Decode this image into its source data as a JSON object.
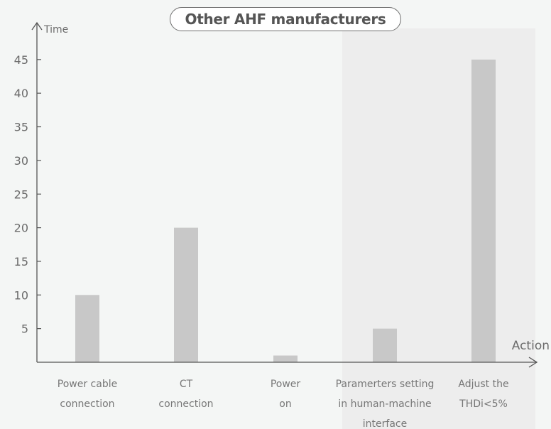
{
  "chart_data": {
    "type": "bar",
    "title": "Other AHF manufacturers",
    "xlabel": "Action",
    "ylabel": "Time",
    "categories": [
      [
        "Power cable",
        "connection"
      ],
      [
        "CT",
        "connection"
      ],
      [
        "Power",
        "on"
      ],
      [
        "Paramerters setting",
        "in human-machine",
        "interface"
      ],
      [
        "Adjust the",
        "THDi<5%"
      ]
    ],
    "values": [
      10,
      20,
      1,
      5,
      45
    ],
    "yticks": [
      5,
      10,
      15,
      20,
      25,
      30,
      35,
      40,
      45
    ],
    "ylim": [
      0,
      45
    ],
    "grid": false,
    "legend": "none",
    "colors": {
      "bar": "#c8c8c8",
      "axis": "#555555",
      "text": "#6b6b6b",
      "background": "#f4f6f5",
      "panel": "#ededed"
    }
  }
}
